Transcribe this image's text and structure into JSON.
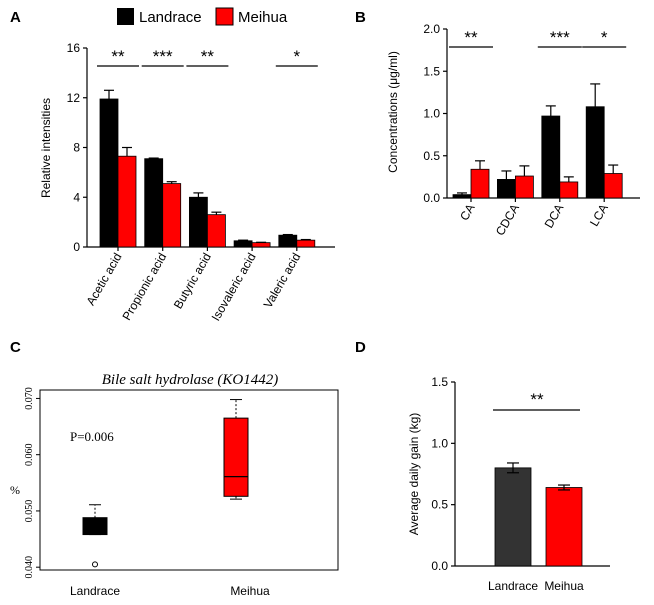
{
  "colors": {
    "landrace": "#000000",
    "meihua": "#ff0000",
    "adg_landrace": "#333333"
  },
  "legend": {
    "series": [
      "Landrace",
      "Meihua"
    ]
  },
  "chart_data": [
    {
      "panel": "A",
      "type": "bar",
      "title": "",
      "ylabel": "Relative intensities",
      "xlabel": "",
      "ylim": [
        0,
        16
      ],
      "yticks": [
        "0",
        "4",
        "8",
        "12",
        "16"
      ],
      "categories": [
        "Acetic acid",
        "Propionic acid",
        "Butyric acid",
        "Isovaleric acid",
        "Valeric acid"
      ],
      "series": [
        {
          "name": "Landrace",
          "values": [
            11.9,
            7.1,
            4.0,
            0.5,
            0.95
          ],
          "errors": [
            0.7,
            0.05,
            0.35,
            0.05,
            0.05
          ]
        },
        {
          "name": "Meihua",
          "values": [
            7.3,
            5.1,
            2.6,
            0.35,
            0.55
          ],
          "errors": [
            0.7,
            0.15,
            0.2,
            0.03,
            0.05
          ]
        }
      ],
      "significance": [
        {
          "category": 0,
          "label": "**"
        },
        {
          "category": 1,
          "label": "***"
        },
        {
          "category": 2,
          "label": "**"
        },
        {
          "category": 4,
          "label": "*"
        }
      ]
    },
    {
      "panel": "B",
      "type": "bar",
      "title": "",
      "ylabel": "Concentrations (μg/ml)",
      "xlabel": "",
      "ylim": [
        0,
        2.0
      ],
      "yticks": [
        "0.0",
        "0.5",
        "1.0",
        "1.5",
        "2.0"
      ],
      "categories": [
        "CA",
        "CDCA",
        "DCA",
        "LCA"
      ],
      "series": [
        {
          "name": "Landrace",
          "values": [
            0.04,
            0.22,
            0.97,
            1.08
          ],
          "errors": [
            0.02,
            0.1,
            0.12,
            0.27
          ]
        },
        {
          "name": "Meihua",
          "values": [
            0.34,
            0.26,
            0.19,
            0.29
          ],
          "errors": [
            0.1,
            0.12,
            0.06,
            0.1
          ]
        }
      ],
      "significance": [
        {
          "category": 0,
          "label": "**"
        },
        {
          "category": 2,
          "label": "***"
        },
        {
          "category": 3,
          "label": "*"
        }
      ]
    },
    {
      "panel": "C",
      "type": "box",
      "title": "Bile salt hydrolase (KO1442)",
      "ylabel": "%",
      "xlabel": "",
      "annotation": "P=0.006",
      "ylim": [
        0.0395,
        0.0715
      ],
      "yticks": [
        "0.040",
        "0.050",
        "0.060",
        "0.070"
      ],
      "categories": [
        "Landrace",
        "Meihua"
      ],
      "boxes": [
        {
          "name": "Landrace",
          "whisker_low": 0.0458,
          "q1": 0.0458,
          "median": 0.0485,
          "q3": 0.0488,
          "whisker_high": 0.0511,
          "outliers": [
            0.0405
          ]
        },
        {
          "name": "Meihua",
          "whisker_low": 0.0521,
          "q1": 0.0526,
          "median": 0.0561,
          "q3": 0.0665,
          "whisker_high": 0.0698,
          "outliers": []
        }
      ]
    },
    {
      "panel": "D",
      "type": "bar",
      "title": "",
      "ylabel": "Average daily gain (kg)",
      "xlabel": "",
      "ylim": [
        0,
        1.5
      ],
      "yticks": [
        "0.0",
        "0.5",
        "1.0",
        "1.5"
      ],
      "categories": [
        "Landrace",
        "Meihua"
      ],
      "values": [
        0.8,
        0.64
      ],
      "errors": [
        0.04,
        0.02
      ],
      "significance": [
        {
          "label": "**"
        }
      ]
    }
  ]
}
